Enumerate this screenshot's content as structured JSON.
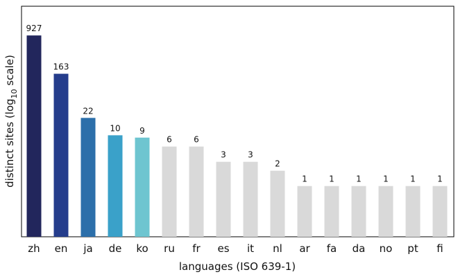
{
  "chart_data": {
    "type": "bar",
    "categories": [
      "zh",
      "en",
      "ja",
      "de",
      "ko",
      "ru",
      "fr",
      "es",
      "it",
      "nl",
      "ar",
      "fa",
      "da",
      "no",
      "pt",
      "fi"
    ],
    "values": [
      927,
      163,
      22,
      10,
      9,
      6,
      6,
      3,
      3,
      2,
      1,
      1,
      1,
      1,
      1,
      1
    ],
    "data_labels": [
      "927",
      "163",
      "22",
      "10",
      "9",
      "6",
      "6",
      "3",
      "3",
      "2",
      "1",
      "1",
      "1",
      "1",
      "1",
      "1"
    ],
    "colors": [
      "#22265c",
      "#253d8c",
      "#2c6faa",
      "#3aa1c9",
      "#6ec5d0",
      "#d9d9d9",
      "#d9d9d9",
      "#d9d9d9",
      "#d9d9d9",
      "#d9d9d9",
      "#d9d9d9",
      "#d9d9d9",
      "#d9d9d9",
      "#d9d9d9",
      "#d9d9d9",
      "#d9d9d9"
    ],
    "xlabel": "languages (ISO 639-1)",
    "ylabel_main": "distinct sites (log",
    "ylabel_sub": "10",
    "ylabel_tail": " scale)",
    "yscale": "log10",
    "ylim": [
      0.1,
      1500
    ],
    "grid": false,
    "legend": "none"
  }
}
